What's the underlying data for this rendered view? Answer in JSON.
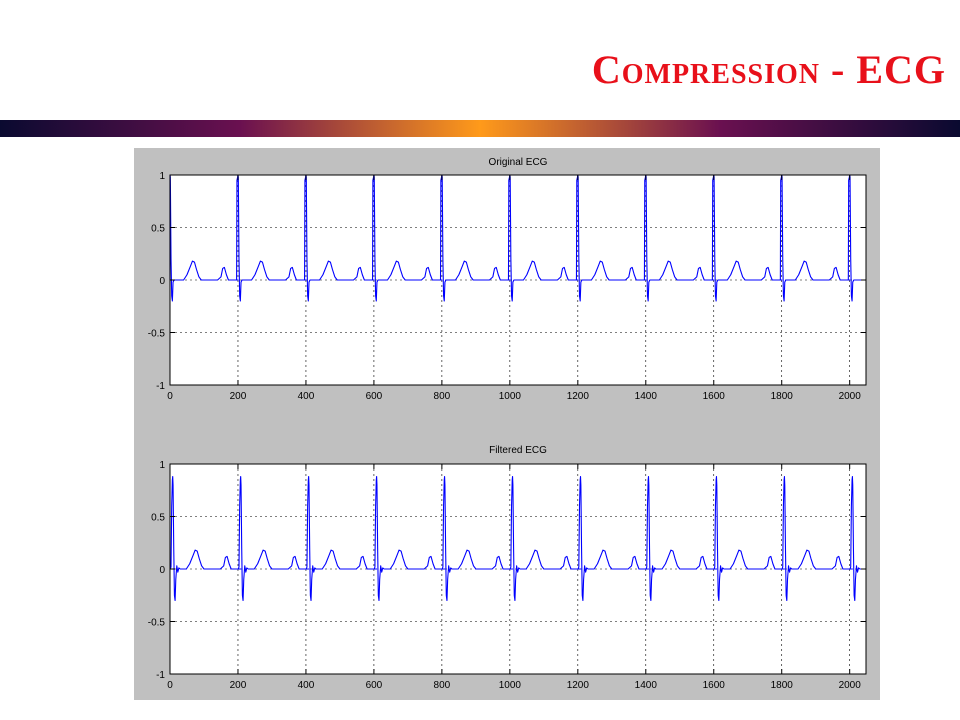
{
  "slide": {
    "title": "Compression - ECG",
    "title_color": "#e8101a",
    "bar_colors": [
      "#0a0a30",
      "#6a1050",
      "#ff9a1a",
      "#6a1050",
      "#0a0a30"
    ]
  },
  "chart_data": [
    {
      "type": "line",
      "title": "Original ECG",
      "xlabel": "",
      "ylabel": "",
      "xlim": [
        0,
        2048
      ],
      "ylim": [
        -1,
        1
      ],
      "xticks": [
        0,
        200,
        400,
        600,
        800,
        1000,
        1200,
        1400,
        1600,
        1800,
        2000
      ],
      "yticks": [
        1,
        0.5,
        0,
        -0.5,
        -1
      ],
      "grid": true,
      "line_color": "#0000ff",
      "series": [
        {
          "name": "",
          "beat_period": 200,
          "first_r_peak_x": 0,
          "beat_shape": {
            "x_offset": [
              -10,
              -6,
              -4,
              -3,
              -1,
              0,
              1,
              3,
              5,
              7,
              9,
              12,
              16,
              20,
              40,
              50,
              60,
              66,
              72,
              78,
              85,
              92,
              100,
              140,
              150,
              155,
              160,
              166,
              172,
              180,
              190,
              200
            ],
            "y": [
              0,
              0,
              0,
              0.95,
              0.98,
              1,
              0.98,
              0.2,
              -0.15,
              -0.2,
              -0.02,
              0,
              0,
              0,
              0,
              0.05,
              0.13,
              0.18,
              0.17,
              0.1,
              0.03,
              0,
              0,
              0,
              0.03,
              0.11,
              0.12,
              0.05,
              0,
              0,
              0,
              0
            ]
          }
        }
      ]
    },
    {
      "type": "line",
      "title": "Filtered ECG",
      "xlabel": "",
      "ylabel": "",
      "xlim": [
        0,
        2048
      ],
      "ylim": [
        -1,
        1
      ],
      "xticks": [
        0,
        200,
        400,
        600,
        800,
        1000,
        1200,
        1400,
        1600,
        1800,
        2000
      ],
      "yticks": [
        1,
        0.5,
        0,
        -0.5,
        -1
      ],
      "grid": true,
      "line_color": "#0000ff",
      "series": [
        {
          "name": "",
          "beat_period": 200,
          "first_r_peak_x": 8,
          "beat_shape": {
            "x_offset": [
              -12,
              -7,
              -5,
              -3,
              -1,
              0,
              1,
              3,
              5,
              7,
              9,
              12,
              15,
              18,
              22,
              40,
              50,
              60,
              66,
              72,
              78,
              85,
              92,
              100,
              140,
              150,
              155,
              160,
              166,
              172,
              180,
              190,
              200
            ],
            "y": [
              0,
              0,
              0.02,
              0.6,
              0.85,
              0.88,
              0.8,
              0.2,
              -0.25,
              -0.3,
              -0.1,
              0.03,
              -0.03,
              0.01,
              0,
              0,
              0.05,
              0.13,
              0.18,
              0.17,
              0.1,
              0.03,
              0,
              0,
              0,
              0.03,
              0.11,
              0.12,
              0.05,
              0,
              0,
              0,
              0
            ]
          }
        }
      ]
    }
  ]
}
